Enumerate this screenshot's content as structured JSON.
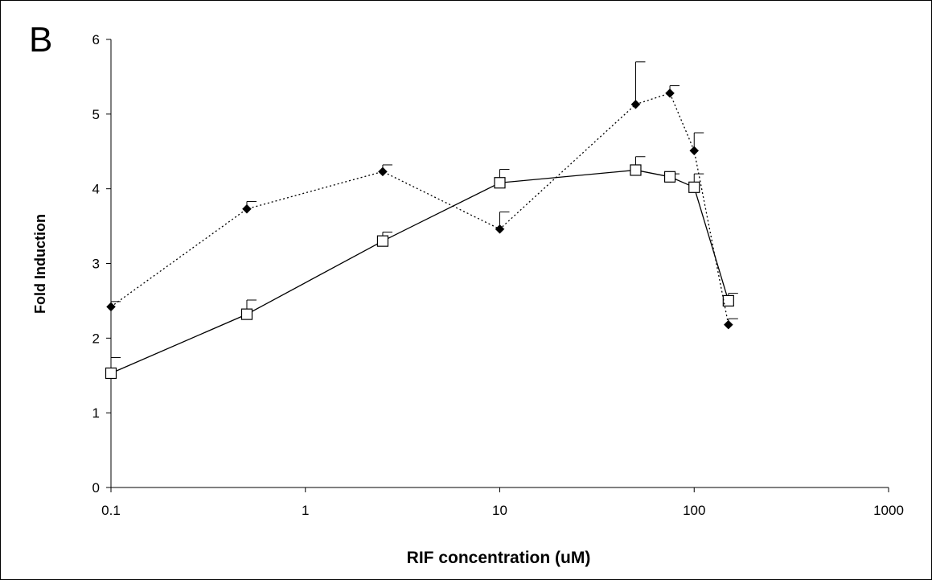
{
  "chart_data": {
    "type": "line",
    "panel_label": "B",
    "xlabel": "RIF concentration (uM)",
    "ylabel": "Fold Induction",
    "x_scale": "log",
    "xlim": [
      0.1,
      1000
    ],
    "ylim": [
      0,
      6
    ],
    "x_ticks": [
      "0.1",
      "1",
      "10",
      "100",
      "1000"
    ],
    "y_ticks": [
      "0",
      "1",
      "2",
      "3",
      "4",
      "5",
      "6"
    ],
    "grid": false,
    "legend": "none",
    "series": [
      {
        "marker": "open-square",
        "line_style": "solid",
        "color": "#000000",
        "x": [
          0.1,
          0.5,
          2.5,
          10,
          50,
          75,
          100,
          150
        ],
        "y": [
          1.53,
          2.32,
          3.3,
          4.08,
          4.25,
          4.16,
          4.02,
          2.5
        ],
        "error": [
          0.21,
          0.19,
          0.12,
          0.18,
          0.18,
          0.04,
          0.18,
          0.1
        ]
      },
      {
        "marker": "filled-diamond",
        "line_style": "dotted",
        "color": "#000000",
        "x": [
          0.1,
          0.5,
          2.5,
          10,
          50,
          75,
          100,
          150
        ],
        "y": [
          2.42,
          3.73,
          4.23,
          3.46,
          5.13,
          5.28,
          4.51,
          2.18
        ],
        "error": [
          0.07,
          0.1,
          0.09,
          0.23,
          0.57,
          0.1,
          0.24,
          0.08
        ]
      }
    ]
  }
}
